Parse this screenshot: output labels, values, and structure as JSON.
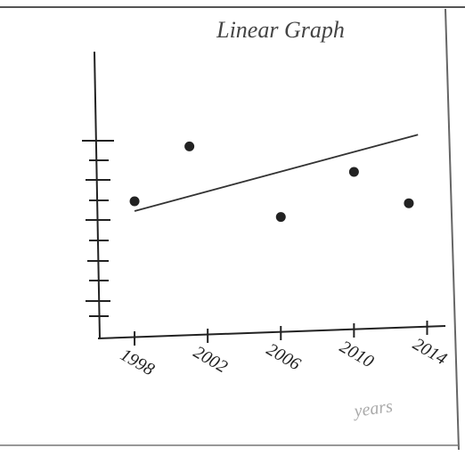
{
  "chart_data": {
    "type": "scatter",
    "title": "Linear Graph",
    "x_label": "years",
    "x": [
      1998,
      2001,
      2006,
      2010,
      2013
    ],
    "values": [
      7.0,
      9.8,
      6.2,
      8.5,
      6.9
    ],
    "color": "#222",
    "trend": {
      "x": [
        1998,
        2013.5
      ],
      "values": [
        6.5,
        10.4
      ]
    },
    "xlim": [
      1996,
      2015
    ],
    "xticks": [
      1998,
      2002,
      2006,
      2010,
      2014
    ],
    "ylim": [
      0,
      11
    ]
  }
}
